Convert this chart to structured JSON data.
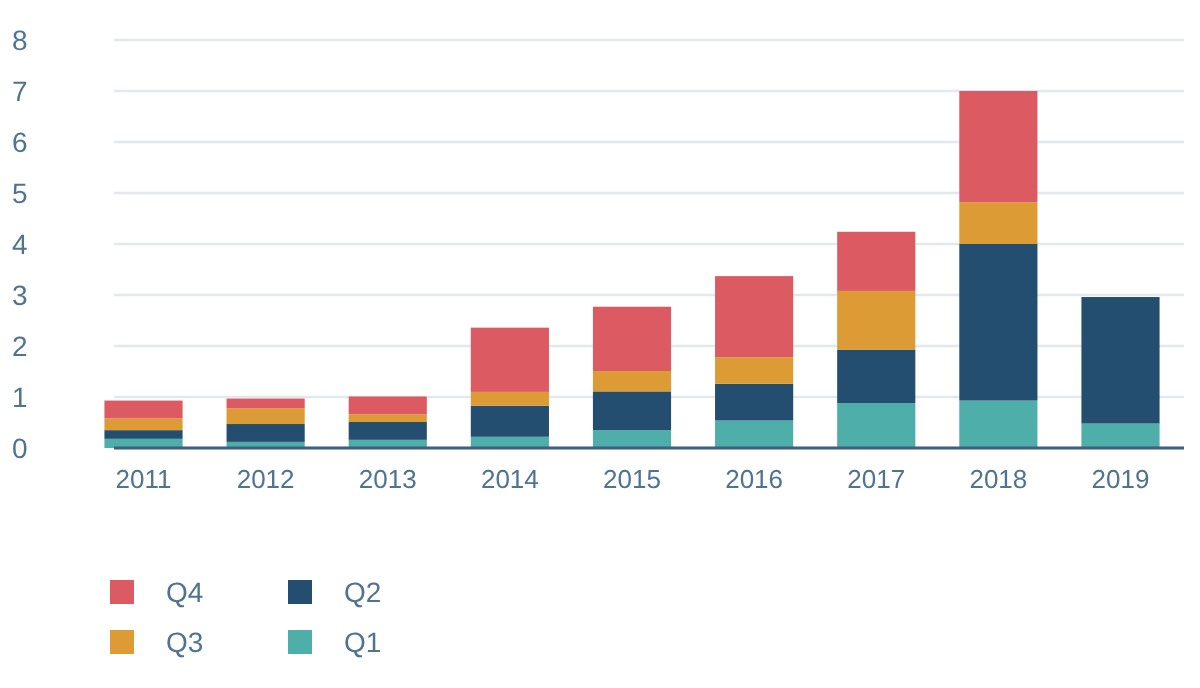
{
  "chart_data": {
    "type": "bar",
    "stacked": true,
    "categories": [
      "2011",
      "2012",
      "2013",
      "2014",
      "2015",
      "2016",
      "2017",
      "2018",
      "2019"
    ],
    "series": [
      {
        "name": "Q1",
        "color": "#4eaea9",
        "values": [
          0.18,
          0.12,
          0.16,
          0.22,
          0.35,
          0.54,
          0.88,
          0.93,
          0.48
        ]
      },
      {
        "name": "Q2",
        "color": "#234e70",
        "values": [
          0.17,
          0.35,
          0.35,
          0.61,
          0.76,
          0.72,
          1.05,
          3.07,
          2.48
        ]
      },
      {
        "name": "Q3",
        "color": "#dc9b35",
        "values": [
          0.23,
          0.31,
          0.15,
          0.27,
          0.4,
          0.52,
          1.15,
          0.82,
          null
        ]
      },
      {
        "name": "Q4",
        "color": "#dc5b63",
        "values": [
          0.35,
          0.19,
          0.35,
          1.26,
          1.26,
          1.59,
          1.16,
          2.18,
          null
        ]
      }
    ],
    "ylim": [
      0,
      8
    ],
    "yticks": [
      0,
      1,
      2,
      3,
      4,
      5,
      6,
      7,
      8
    ],
    "grid": "y",
    "legend": "bottom left"
  }
}
